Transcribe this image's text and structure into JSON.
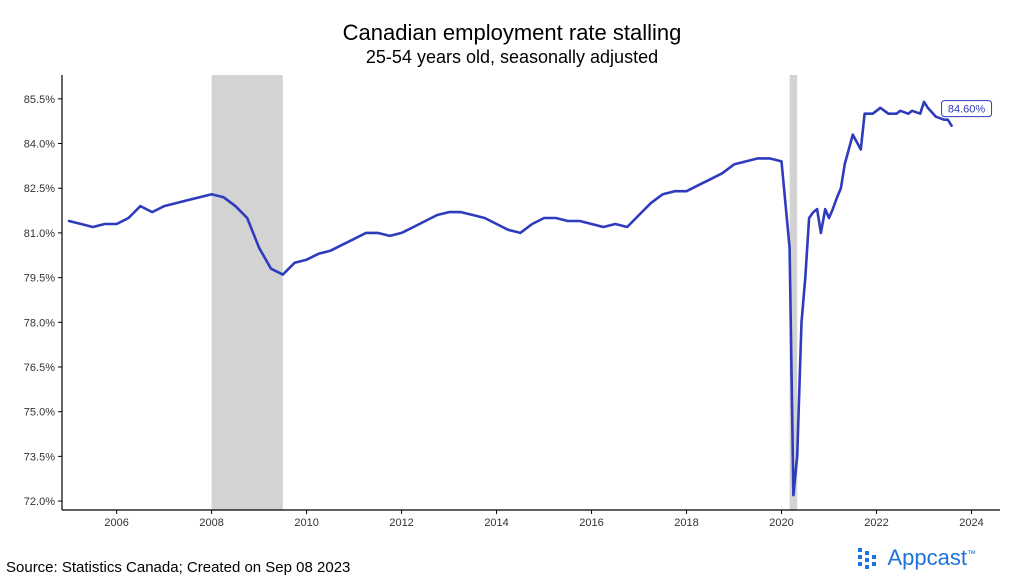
{
  "chart_data": {
    "type": "line",
    "title": "Canadian employment rate stalling",
    "subtitle": "25-54 years old, seasonally adjusted",
    "xlabel": "",
    "ylabel": "",
    "xlim": [
      2004.85,
      2024.6
    ],
    "ylim": [
      71.7,
      86.3
    ],
    "x_ticks": [
      2006,
      2008,
      2010,
      2012,
      2014,
      2016,
      2018,
      2020,
      2022,
      2024
    ],
    "x_tick_labels": [
      "2006",
      "2008",
      "2010",
      "2012",
      "2014",
      "2016",
      "2018",
      "2020",
      "2022",
      "2024"
    ],
    "y_ticks": [
      72.0,
      73.5,
      75.0,
      76.5,
      78.0,
      79.5,
      81.0,
      82.5,
      84.0,
      85.5
    ],
    "y_tick_labels": [
      "72.0%",
      "73.5%",
      "75.0%",
      "76.5%",
      "78.0%",
      "79.5%",
      "81.0%",
      "82.5%",
      "84.0%",
      "85.5%"
    ],
    "grid": false,
    "recession_shading": [
      [
        2008.0,
        2009.5
      ],
      [
        2020.17,
        2020.33
      ]
    ],
    "series": [
      {
        "color": "#2f3bbd",
        "x": [
          2005.0,
          2005.25,
          2005.5,
          2005.75,
          2006.0,
          2006.25,
          2006.5,
          2006.75,
          2007.0,
          2007.25,
          2007.5,
          2007.75,
          2008.0,
          2008.25,
          2008.5,
          2008.75,
          2009.0,
          2009.25,
          2009.5,
          2009.75,
          2010.0,
          2010.25,
          2010.5,
          2010.75,
          2011.0,
          2011.25,
          2011.5,
          2011.75,
          2012.0,
          2012.25,
          2012.5,
          2012.75,
          2013.0,
          2013.25,
          2013.5,
          2013.75,
          2014.0,
          2014.25,
          2014.5,
          2014.75,
          2015.0,
          2015.25,
          2015.5,
          2015.75,
          2016.0,
          2016.25,
          2016.5,
          2016.75,
          2017.0,
          2017.25,
          2017.5,
          2017.75,
          2018.0,
          2018.25,
          2018.5,
          2018.75,
          2019.0,
          2019.25,
          2019.5,
          2019.75,
          2020.0,
          2020.17,
          2020.25,
          2020.33,
          2020.42,
          2020.5,
          2020.58,
          2020.67,
          2020.75,
          2020.83,
          2020.92,
          2021.0,
          2021.08,
          2021.17,
          2021.25,
          2021.33,
          2021.5,
          2021.67,
          2021.75,
          2021.92,
          2022.0,
          2022.08,
          2022.25,
          2022.42,
          2022.5,
          2022.67,
          2022.75,
          2022.92,
          2023.0,
          2023.08,
          2023.25,
          2023.42,
          2023.5,
          2023.58
        ],
        "y": [
          81.4,
          81.3,
          81.2,
          81.3,
          81.3,
          81.5,
          81.9,
          81.7,
          81.9,
          82.0,
          82.1,
          82.2,
          82.3,
          82.2,
          81.9,
          81.5,
          80.5,
          79.8,
          79.6,
          80.0,
          80.1,
          80.3,
          80.4,
          80.6,
          80.8,
          81.0,
          81.0,
          80.9,
          81.0,
          81.2,
          81.4,
          81.6,
          81.7,
          81.7,
          81.6,
          81.5,
          81.3,
          81.1,
          81.0,
          81.3,
          81.5,
          81.5,
          81.4,
          81.4,
          81.3,
          81.2,
          81.3,
          81.2,
          81.6,
          82.0,
          82.3,
          82.4,
          82.4,
          82.6,
          82.8,
          83.0,
          83.3,
          83.4,
          83.5,
          83.5,
          83.4,
          80.5,
          72.2,
          73.5,
          78.0,
          79.5,
          81.5,
          81.7,
          81.8,
          81.0,
          81.8,
          81.5,
          81.8,
          82.2,
          82.5,
          83.3,
          84.3,
          83.8,
          85.0,
          85.0,
          85.1,
          85.2,
          85.0,
          85.0,
          85.1,
          85.0,
          85.1,
          85.0,
          85.4,
          85.2,
          84.9,
          84.8,
          84.8,
          84.6
        ]
      }
    ],
    "end_label": "84.60%"
  },
  "footer": {
    "source": "Source: Statistics Canada; Created on Sep 08 2023",
    "brand": "Appcast",
    "brand_mark": "™",
    "brand_color": "#1e73d9"
  }
}
